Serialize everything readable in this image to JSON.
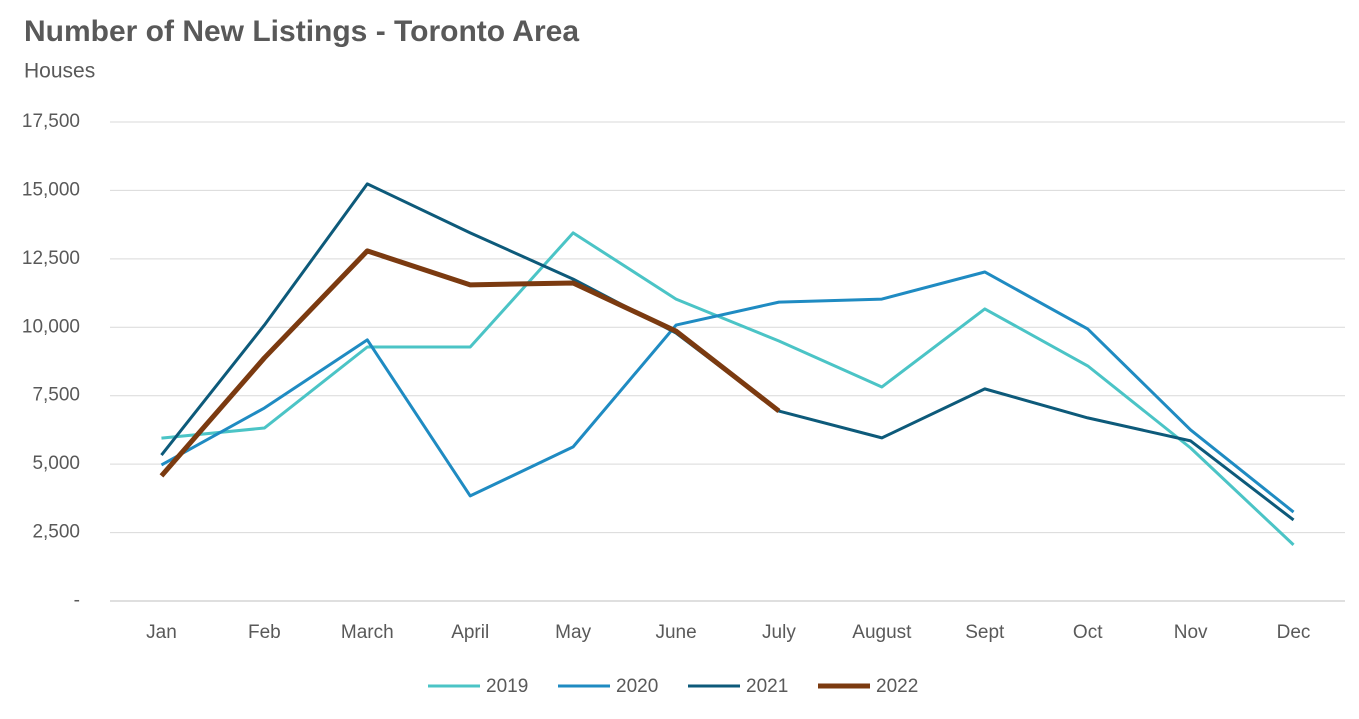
{
  "chart_data": {
    "type": "line",
    "title": "Number of New Listings - Toronto Area",
    "subtitle": "Houses",
    "categories": [
      "Jan",
      "Feb",
      "March",
      "April",
      "May",
      "June",
      "July",
      "August",
      "Sept",
      "Oct",
      "Nov",
      "Dec"
    ],
    "series": [
      {
        "name": "2019",
        "color": "#4bc4c6",
        "width": 3,
        "values": [
          5950,
          6320,
          9280,
          9280,
          13450,
          11030,
          9500,
          7820,
          10670,
          8590,
          5590,
          2050
        ]
      },
      {
        "name": "2020",
        "color": "#1f8bc2",
        "width": 3,
        "values": [
          4970,
          7050,
          9540,
          3840,
          5630,
          10080,
          10920,
          11030,
          12020,
          9940,
          6250,
          3250
        ]
      },
      {
        "name": "2021",
        "color": "#0d5a7a",
        "width": 3,
        "values": [
          5330,
          10080,
          15240,
          13450,
          11760,
          9790,
          6940,
          5960,
          7750,
          6690,
          5850,
          2960
        ]
      },
      {
        "name": "2022",
        "color": "#7b3a10",
        "width": 5,
        "values": [
          4570,
          8880,
          12790,
          11550,
          11620,
          9860,
          6940,
          null,
          null,
          null,
          null,
          null
        ]
      }
    ],
    "ylim": [
      0,
      17500
    ],
    "yticks": [
      {
        "value": 0,
        "label": "-"
      },
      {
        "value": 2500,
        "label": "2,500"
      },
      {
        "value": 5000,
        "label": "5,000"
      },
      {
        "value": 7500,
        "label": "7,500"
      },
      {
        "value": 10000,
        "label": "10,000"
      },
      {
        "value": 12500,
        "label": "12,500"
      },
      {
        "value": 15000,
        "label": "15,000"
      },
      {
        "value": 17500,
        "label": "17,500"
      }
    ],
    "grid": true,
    "legend": "bottom"
  }
}
